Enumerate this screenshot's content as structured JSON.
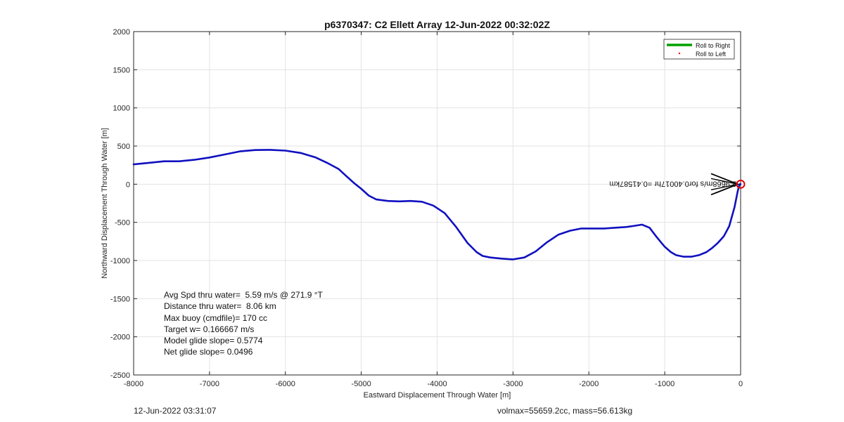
{
  "chart_data": {
    "type": "line",
    "title": "p6370347: C2 Ellett Array 12-Jun-2022 00:32:02Z",
    "xlabel": "Eastward Displacement Through Water [m]",
    "ylabel": "Northward Displacement Through Water [m]",
    "xlim": [
      -8000,
      0
    ],
    "ylim": [
      -2500,
      2000
    ],
    "xticks": [
      -8000,
      -7000,
      -6000,
      -5000,
      -4000,
      -3000,
      -2000,
      -1000,
      0
    ],
    "yticks": [
      -2500,
      -2000,
      -1500,
      -1000,
      -500,
      0,
      500,
      1000,
      1500,
      2000
    ],
    "grid": true,
    "legend_position": "top-right",
    "series": [
      {
        "name": "Roll to Right",
        "color": "#00a000",
        "style": "solid line",
        "x": [],
        "y": []
      },
      {
        "name": "Roll to Left",
        "color": "#ff0000",
        "style": "dot marker",
        "x": [],
        "y": []
      },
      {
        "name": "",
        "color": "#1010c0",
        "style": "solid line",
        "x": [
          -8000,
          -7800,
          -7600,
          -7400,
          -7200,
          -7000,
          -6800,
          -6600,
          -6400,
          -6200,
          -6000,
          -5800,
          -5600,
          -5450,
          -5300,
          -5200,
          -5100,
          -5000,
          -4900,
          -4800,
          -4650,
          -4500,
          -4350,
          -4200,
          -4050,
          -3900,
          -3750,
          -3600,
          -3480,
          -3400,
          -3300,
          -3150,
          -3000,
          -2850,
          -2700,
          -2550,
          -2400,
          -2250,
          -2100,
          -1950,
          -1800,
          -1650,
          -1500,
          -1400,
          -1300,
          -1200,
          -1100,
          -1000,
          -920,
          -850,
          -750,
          -650,
          -550,
          -450,
          -380,
          -300,
          -220,
          -150,
          -80,
          -40,
          -20,
          -10,
          0
        ],
        "y": [
          260,
          280,
          300,
          300,
          320,
          350,
          390,
          430,
          448,
          450,
          440,
          410,
          350,
          280,
          200,
          110,
          20,
          -60,
          -150,
          -200,
          -220,
          -225,
          -220,
          -230,
          -280,
          -380,
          -560,
          -770,
          -890,
          -940,
          -960,
          -975,
          -985,
          -960,
          -880,
          -760,
          -660,
          -610,
          -580,
          -580,
          -580,
          -570,
          -560,
          -545,
          -530,
          -570,
          -700,
          -820,
          -890,
          -930,
          -950,
          -950,
          -930,
          -890,
          -840,
          -770,
          -680,
          -550,
          -300,
          -100,
          -20,
          0,
          0
        ]
      }
    ],
    "annotations": {
      "marker_text": "2.9668m/s for0.40017hr =0.41587km"
    }
  },
  "stats": {
    "line1": "Avg Spd thru water=  5.59 m/s @ 271.9 °T",
    "line2": "Distance thru water=  8.06 km",
    "line3": "Max buoy (cmdfile)= 170 cc",
    "line4": "Target w= 0.166667 m/s",
    "line5": "Model glide slope= 0.5774",
    "line6": "Net glide slope= 0.0496"
  },
  "footer": {
    "timestamp": "12-Jun-2022 03:31:07",
    "volmass": "volmax=55659.2cc, mass=56.613kg"
  }
}
